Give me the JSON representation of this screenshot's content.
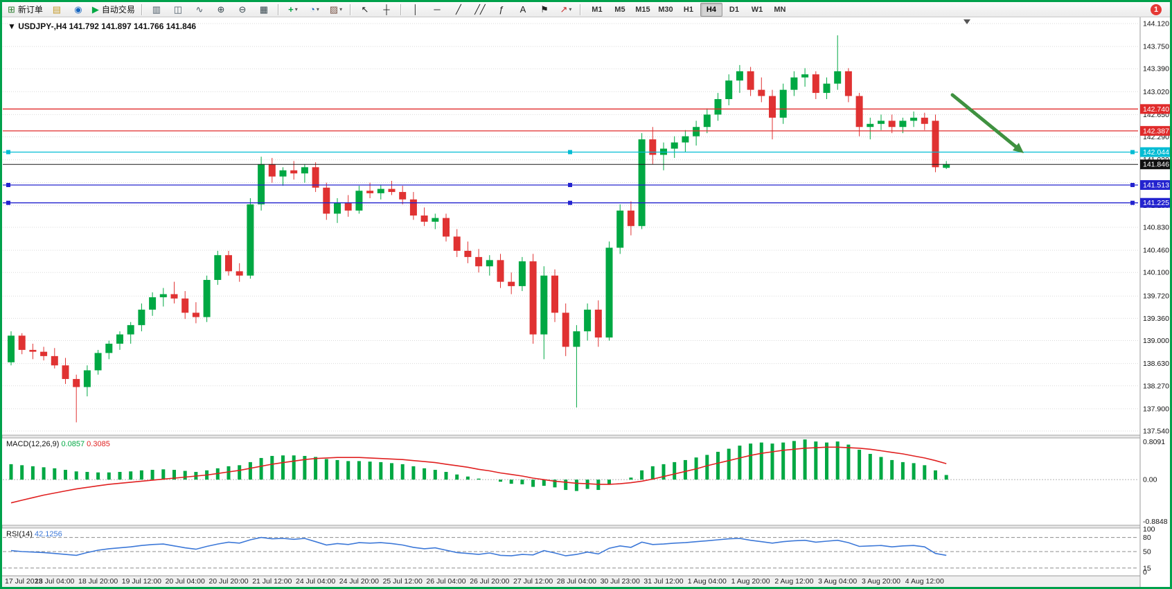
{
  "toolbar": {
    "items": [
      {
        "type": "button",
        "name": "new-order-button",
        "icon": "new-order-icon",
        "label": "新订单"
      },
      {
        "type": "button",
        "name": "profiles-button",
        "icon": "profiles-icon"
      },
      {
        "type": "button",
        "name": "data-window-button",
        "icon": "data-window-icon"
      },
      {
        "type": "button",
        "name": "autotrading-button",
        "icon": "autotrading-icon",
        "label": "自动交易"
      },
      {
        "type": "separator"
      },
      {
        "type": "button",
        "name": "bar-chart-button",
        "icon": "bars-chart-icon"
      },
      {
        "type": "button",
        "name": "candlestick-chart-button",
        "icon": "candlestick-chart-icon"
      },
      {
        "type": "button",
        "name": "line-chart-button",
        "icon": "line-chart-icon"
      },
      {
        "type": "button",
        "name": "zoom-in-button",
        "icon": "zoom-in-icon"
      },
      {
        "type": "button",
        "name": "zoom-out-button",
        "icon": "zoom-out-icon"
      },
      {
        "type": "button",
        "name": "tile-windows-button",
        "icon": "tile-windows-icon"
      },
      {
        "type": "separator"
      },
      {
        "type": "button",
        "name": "indicators-button",
        "icon": "indicators-icon",
        "dropdown": true
      },
      {
        "type": "button",
        "name": "periods-button",
        "icon": "periods-icon",
        "dropdown": true
      },
      {
        "type": "button",
        "name": "templates-button",
        "icon": "templates-icon",
        "dropdown": true
      },
      {
        "type": "separator"
      },
      {
        "type": "button",
        "name": "cursor-button",
        "icon": "cursor-icon"
      },
      {
        "type": "button",
        "name": "crosshair-button",
        "icon": "crosshair-icon"
      },
      {
        "type": "separator"
      },
      {
        "type": "button",
        "name": "vertical-line-button",
        "icon": "vertical-line-icon"
      },
      {
        "type": "button",
        "name": "horizontal-line-button",
        "icon": "horizontal-line-icon"
      },
      {
        "type": "button",
        "name": "trendline-button",
        "icon": "trendline-icon"
      },
      {
        "type": "button",
        "name": "channel-button",
        "icon": "channel-icon"
      },
      {
        "type": "button",
        "name": "fibonacci-button",
        "icon": "fibonacci-icon"
      },
      {
        "type": "button",
        "name": "text-button",
        "icon": "text-icon"
      },
      {
        "type": "button",
        "name": "label-button",
        "icon": "label-icon"
      },
      {
        "type": "button",
        "name": "arrows-button",
        "icon": "arrows-icon",
        "dropdown": true
      },
      {
        "type": "separator"
      }
    ],
    "timeframes": [
      "M1",
      "M5",
      "M15",
      "M30",
      "H1",
      "H4",
      "D1",
      "W1",
      "MN"
    ],
    "active_timeframe": "H4",
    "notification_badge": "1"
  },
  "chart_header": {
    "collapse_arrow": "▼",
    "title": "USDJPY-,H4",
    "open": "141.792",
    "high": "141.897",
    "low": "141.766",
    "close": "141.846"
  },
  "price_axis": {
    "labels": [
      "144.120",
      "143.750",
      "143.390",
      "143.020",
      "142.650",
      "142.290",
      "141.920",
      "141.550",
      "141.180",
      "140.830",
      "140.460",
      "140.100",
      "139.720",
      "139.360",
      "139.000",
      "138.630",
      "138.270",
      "137.900",
      "137.540"
    ]
  },
  "time_axis": {
    "labels": [
      "17 Jul 2023",
      "18 Jul 04:00",
      "18 Jul 20:00",
      "19 Jul 12:00",
      "20 Jul 04:00",
      "20 Jul 20:00",
      "21 Jul 12:00",
      "24 Jul 04:00",
      "24 Jul 20:00",
      "25 Jul 12:00",
      "26 Jul 04:00",
      "26 Jul 20:00",
      "27 Jul 12:00",
      "28 Jul 04:00",
      "30 Jul 23:00",
      "31 Jul 12:00",
      "1 Aug 04:00",
      "1 Aug 20:00",
      "2 Aug 12:00",
      "3 Aug 04:00",
      "3 Aug 20:00",
      "4 Aug 12:00"
    ]
  },
  "objects": {
    "hlines": [
      {
        "label": "142.740",
        "price": 142.74,
        "color": "#e02b2b",
        "handles": false
      },
      {
        "label": "142.387",
        "price": 142.387,
        "color": "#e02b2b",
        "handles": false
      },
      {
        "label": "142.044",
        "price": 142.044,
        "color": "#00bcd4",
        "handles": true
      },
      {
        "label": "141.513",
        "price": 141.513,
        "color": "#2323cf",
        "handles": true
      },
      {
        "label": "141.225",
        "price": 141.225,
        "color": "#2323cf",
        "handles": true
      }
    ],
    "bid_line": {
      "label": "141.846",
      "price": 141.846,
      "color": "#1a1a1a"
    },
    "arrow": {
      "from": [
        1372,
        112
      ],
      "to": [
        1475,
        196
      ],
      "color": "#3f9140"
    }
  },
  "chart_data": {
    "type": "candlestick",
    "symbol": "USDJPY-",
    "timeframe": "H4",
    "price_range": [
      137.54,
      144.12
    ],
    "up_color": "#00a843",
    "down_color": "#e03232",
    "candles_ohlc": [
      [
        138.65,
        139.15,
        138.6,
        139.08
      ],
      [
        139.08,
        139.12,
        138.78,
        138.85
      ],
      [
        138.85,
        138.95,
        138.7,
        138.82
      ],
      [
        138.82,
        138.9,
        138.68,
        138.75
      ],
      [
        138.75,
        138.88,
        138.55,
        138.6
      ],
      [
        138.6,
        138.72,
        138.3,
        138.38
      ],
      [
        138.38,
        138.45,
        137.68,
        138.25
      ],
      [
        138.25,
        138.6,
        138.1,
        138.52
      ],
      [
        138.52,
        138.85,
        138.45,
        138.8
      ],
      [
        138.8,
        139.0,
        138.7,
        138.95
      ],
      [
        138.95,
        139.15,
        138.85,
        139.1
      ],
      [
        139.1,
        139.3,
        138.95,
        139.25
      ],
      [
        139.25,
        139.6,
        139.15,
        139.5
      ],
      [
        139.5,
        139.78,
        139.4,
        139.7
      ],
      [
        139.7,
        139.85,
        139.55,
        139.75
      ],
      [
        139.75,
        139.95,
        139.6,
        139.68
      ],
      [
        139.68,
        139.8,
        139.35,
        139.45
      ],
      [
        139.45,
        139.62,
        139.28,
        139.38
      ],
      [
        139.38,
        140.05,
        139.3,
        139.98
      ],
      [
        139.98,
        140.45,
        139.9,
        140.38
      ],
      [
        140.38,
        140.45,
        140.05,
        140.12
      ],
      [
        140.12,
        140.25,
        139.95,
        140.05
      ],
      [
        140.05,
        141.3,
        140.0,
        141.2
      ],
      [
        141.2,
        141.97,
        141.1,
        141.85
      ],
      [
        141.85,
        141.95,
        141.55,
        141.65
      ],
      [
        141.65,
        141.8,
        141.5,
        141.75
      ],
      [
        141.75,
        141.9,
        141.6,
        141.7
      ],
      [
        141.7,
        141.85,
        141.55,
        141.8
      ],
      [
        141.8,
        141.88,
        141.4,
        141.47
      ],
      [
        141.47,
        141.55,
        140.95,
        141.05
      ],
      [
        141.05,
        141.3,
        140.9,
        141.22
      ],
      [
        141.22,
        141.35,
        141.0,
        141.1
      ],
      [
        141.1,
        141.5,
        141.05,
        141.42
      ],
      [
        141.42,
        141.55,
        141.3,
        141.38
      ],
      [
        141.38,
        141.52,
        141.28,
        141.45
      ],
      [
        141.45,
        141.58,
        141.35,
        141.4
      ],
      [
        141.4,
        141.5,
        141.2,
        141.28
      ],
      [
        141.28,
        141.4,
        140.95,
        141.02
      ],
      [
        141.02,
        141.15,
        140.85,
        140.92
      ],
      [
        140.92,
        141.05,
        140.8,
        140.98
      ],
      [
        140.98,
        141.05,
        140.6,
        140.68
      ],
      [
        140.68,
        140.8,
        140.35,
        140.45
      ],
      [
        140.45,
        140.6,
        140.25,
        140.35
      ],
      [
        140.35,
        140.48,
        140.1,
        140.2
      ],
      [
        140.2,
        140.38,
        140.05,
        140.3
      ],
      [
        140.3,
        140.4,
        139.85,
        139.95
      ],
      [
        139.95,
        140.1,
        139.75,
        139.88
      ],
      [
        139.88,
        140.35,
        139.8,
        140.28
      ],
      [
        140.28,
        140.4,
        138.95,
        139.1
      ],
      [
        139.1,
        140.2,
        138.7,
        140.05
      ],
      [
        140.05,
        140.15,
        139.3,
        139.45
      ],
      [
        139.45,
        139.6,
        138.75,
        138.9
      ],
      [
        138.9,
        139.25,
        137.92,
        139.15
      ],
      [
        139.15,
        139.6,
        139.0,
        139.5
      ],
      [
        139.5,
        139.65,
        138.9,
        139.05
      ],
      [
        139.05,
        140.6,
        139.0,
        140.5
      ],
      [
        140.5,
        141.2,
        140.4,
        141.1
      ],
      [
        141.1,
        141.25,
        140.7,
        140.85
      ],
      [
        140.85,
        142.35,
        140.8,
        142.25
      ],
      [
        142.25,
        142.45,
        141.85,
        142.0
      ],
      [
        142.0,
        142.2,
        141.75,
        142.1
      ],
      [
        142.1,
        142.3,
        141.95,
        142.2
      ],
      [
        142.2,
        142.4,
        142.05,
        142.3
      ],
      [
        142.3,
        142.55,
        142.15,
        142.45
      ],
      [
        142.45,
        142.75,
        142.35,
        142.65
      ],
      [
        142.65,
        143.0,
        142.55,
        142.9
      ],
      [
        142.9,
        143.3,
        142.8,
        143.2
      ],
      [
        143.2,
        143.45,
        143.0,
        143.35
      ],
      [
        143.35,
        143.42,
        142.95,
        143.05
      ],
      [
        143.05,
        143.25,
        142.85,
        142.95
      ],
      [
        142.95,
        143.05,
        142.25,
        142.6
      ],
      [
        142.6,
        143.15,
        142.5,
        143.05
      ],
      [
        143.05,
        143.35,
        142.95,
        143.25
      ],
      [
        143.25,
        143.4,
        143.1,
        143.3
      ],
      [
        143.3,
        143.35,
        142.9,
        143.0
      ],
      [
        143.0,
        143.25,
        142.9,
        143.15
      ],
      [
        143.15,
        143.93,
        143.05,
        143.35
      ],
      [
        143.35,
        143.4,
        142.85,
        142.95
      ],
      [
        142.95,
        143.0,
        142.3,
        142.45
      ],
      [
        142.45,
        142.6,
        142.25,
        142.5
      ],
      [
        142.5,
        142.65,
        142.4,
        142.55
      ],
      [
        142.55,
        142.65,
        142.35,
        142.45
      ],
      [
        142.45,
        142.6,
        142.35,
        142.55
      ],
      [
        142.55,
        142.7,
        142.45,
        142.6
      ],
      [
        142.6,
        142.68,
        142.4,
        142.5
      ],
      [
        142.55,
        142.65,
        141.72,
        141.8
      ],
      [
        141.79,
        141.9,
        141.77,
        141.85
      ]
    ],
    "indicators": [
      {
        "type": "macd",
        "label": "MACD(12,26,9)",
        "current_main": "0.0857",
        "current_signal": "0.3085",
        "axis_labels": [
          "0.8091",
          "0.00",
          "-0.8848"
        ],
        "histogram_color": "#00a843",
        "signal_color": "#e02020",
        "histogram": [
          0.3,
          0.28,
          0.26,
          0.24,
          0.22,
          0.19,
          0.16,
          0.15,
          0.14,
          0.14,
          0.15,
          0.16,
          0.18,
          0.19,
          0.2,
          0.19,
          0.17,
          0.15,
          0.18,
          0.22,
          0.26,
          0.28,
          0.34,
          0.42,
          0.46,
          0.47,
          0.47,
          0.46,
          0.44,
          0.4,
          0.38,
          0.36,
          0.36,
          0.35,
          0.34,
          0.32,
          0.3,
          0.26,
          0.22,
          0.19,
          0.15,
          0.1,
          0.06,
          0.02,
          0.0,
          -0.04,
          -0.08,
          -0.09,
          -0.14,
          -0.12,
          -0.15,
          -0.2,
          -0.22,
          -0.18,
          -0.2,
          -0.1,
          0.0,
          0.04,
          0.18,
          0.26,
          0.3,
          0.34,
          0.38,
          0.43,
          0.48,
          0.54,
          0.6,
          0.66,
          0.7,
          0.72,
          0.7,
          0.72,
          0.75,
          0.78,
          0.74,
          0.72,
          0.74,
          0.68,
          0.58,
          0.5,
          0.44,
          0.38,
          0.34,
          0.32,
          0.28,
          0.18,
          0.09
        ],
        "signal": [
          -0.45,
          -0.4,
          -0.35,
          -0.3,
          -0.26,
          -0.22,
          -0.18,
          -0.15,
          -0.12,
          -0.09,
          -0.07,
          -0.05,
          -0.03,
          -0.01,
          0.01,
          0.03,
          0.05,
          0.07,
          0.09,
          0.12,
          0.15,
          0.18,
          0.22,
          0.26,
          0.3,
          0.33,
          0.36,
          0.39,
          0.41,
          0.42,
          0.43,
          0.43,
          0.43,
          0.42,
          0.41,
          0.4,
          0.39,
          0.37,
          0.35,
          0.33,
          0.3,
          0.27,
          0.24,
          0.2,
          0.17,
          0.13,
          0.1,
          0.07,
          0.03,
          0.0,
          -0.03,
          -0.05,
          -0.07,
          -0.08,
          -0.09,
          -0.09,
          -0.08,
          -0.06,
          -0.03,
          0.01,
          0.06,
          0.11,
          0.16,
          0.21,
          0.27,
          0.32,
          0.37,
          0.42,
          0.47,
          0.51,
          0.54,
          0.57,
          0.59,
          0.61,
          0.62,
          0.63,
          0.63,
          0.62,
          0.61,
          0.59,
          0.56,
          0.53,
          0.5,
          0.46,
          0.42,
          0.37,
          0.31
        ]
      },
      {
        "type": "rsi",
        "label": "RSI(14)",
        "current": "42.1256",
        "axis_labels": [
          "100",
          "80",
          "50",
          "15",
          "0"
        ],
        "levels": [
          80,
          50,
          15
        ],
        "line_color": "#3c78d8",
        "values": [
          52,
          50,
          49,
          48,
          46,
          44,
          42,
          48,
          53,
          56,
          58,
          60,
          63,
          65,
          66,
          62,
          58,
          55,
          61,
          66,
          70,
          68,
          75,
          80,
          77,
          78,
          76,
          78,
          71,
          64,
          67,
          65,
          69,
          68,
          69,
          67,
          64,
          59,
          56,
          58,
          53,
          48,
          46,
          44,
          47,
          42,
          41,
          44,
          43,
          52,
          47,
          41,
          44,
          49,
          45,
          57,
          62,
          59,
          70,
          65,
          66,
          68,
          69,
          71,
          73,
          75,
          77,
          78,
          74,
          71,
          68,
          71,
          73,
          74,
          70,
          72,
          74,
          69,
          61,
          62,
          63,
          60,
          62,
          63,
          60,
          46,
          42
        ]
      }
    ]
  }
}
